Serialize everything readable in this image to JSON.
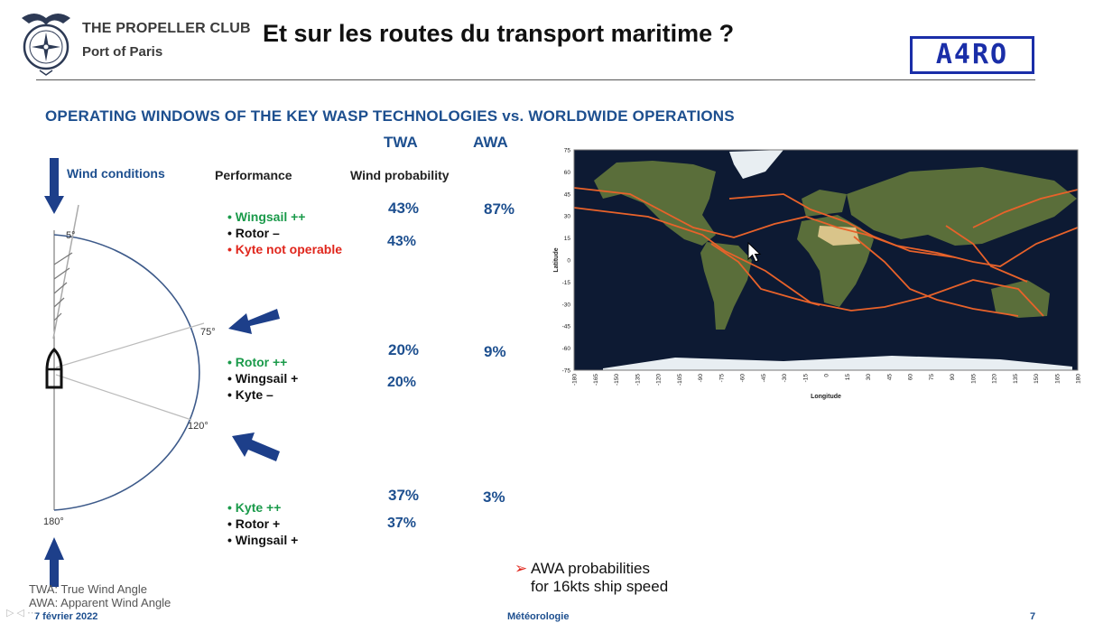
{
  "header": {
    "club_name": "THE PROPELLER CLUB",
    "club_port": "Port of Paris",
    "slide_title": "Et sur les routes du transport maritime ?",
    "brand_logo_text": "A4RO"
  },
  "subtitle": "OPERATING WINDOWS OF THE KEY WASP TECHNOLOGIES vs. WORLDWIDE OPERATIONS",
  "columns": {
    "twa": "TWA",
    "awa": "AWA",
    "wind_conditions": "Wind conditions",
    "performance": "Performance",
    "wind_probability": "Wind probability"
  },
  "angles": {
    "a5": "5°",
    "a75": "75°",
    "a120": "120°",
    "a180": "180°"
  },
  "rows": [
    {
      "items": [
        {
          "bullet": "•",
          "text": "Wingsail ++"
        },
        {
          "bullet": "•",
          "text": "Rotor –"
        },
        {
          "bullet": "•",
          "text": "Kyte not operable"
        }
      ],
      "twa": "43%",
      "awa": "87%",
      "prob": "43%"
    },
    {
      "items": [
        {
          "bullet": "•",
          "text": "Rotor ++"
        },
        {
          "bullet": "•",
          "text": "Wingsail +"
        },
        {
          "bullet": "•",
          "text": "Kyte –"
        }
      ],
      "twa": "20%",
      "awa": "9%",
      "prob": "20%"
    },
    {
      "items": [
        {
          "bullet": "•",
          "text": "Kyte ++"
        },
        {
          "bullet": "•",
          "text": "Rotor +"
        },
        {
          "bullet": "•",
          "text": "Wingsail +"
        }
      ],
      "twa": "37%",
      "awa": "3%",
      "prob": "37%"
    }
  ],
  "map": {
    "y_label": "Latitude",
    "x_label": "Longitude",
    "lat_ticks": [
      "75",
      "60",
      "45",
      "30",
      "15",
      "0",
      "-15",
      "-30",
      "-45",
      "-60",
      "-75"
    ],
    "lon_ticks": [
      "-180",
      "-165",
      "-150",
      "-135",
      "-120",
      "-105",
      "-90",
      "-75",
      "-60",
      "-45",
      "-30",
      "-15",
      "0",
      "15",
      "30",
      "45",
      "60",
      "75",
      "90",
      "105",
      "120",
      "135",
      "150",
      "165",
      "180"
    ],
    "ocean_color": "#0d1a33",
    "route_color": "#e8622a"
  },
  "note": {
    "arrow": "➢",
    "line1": "AWA probabilities",
    "line2": "for 16kts ship speed"
  },
  "legend": {
    "twa": "TWA: True Wind Angle",
    "awa": "AWA: Apparent Wind Angle"
  },
  "footer": {
    "date": "7 février 2022",
    "section": "Météorologie",
    "page": "7"
  }
}
